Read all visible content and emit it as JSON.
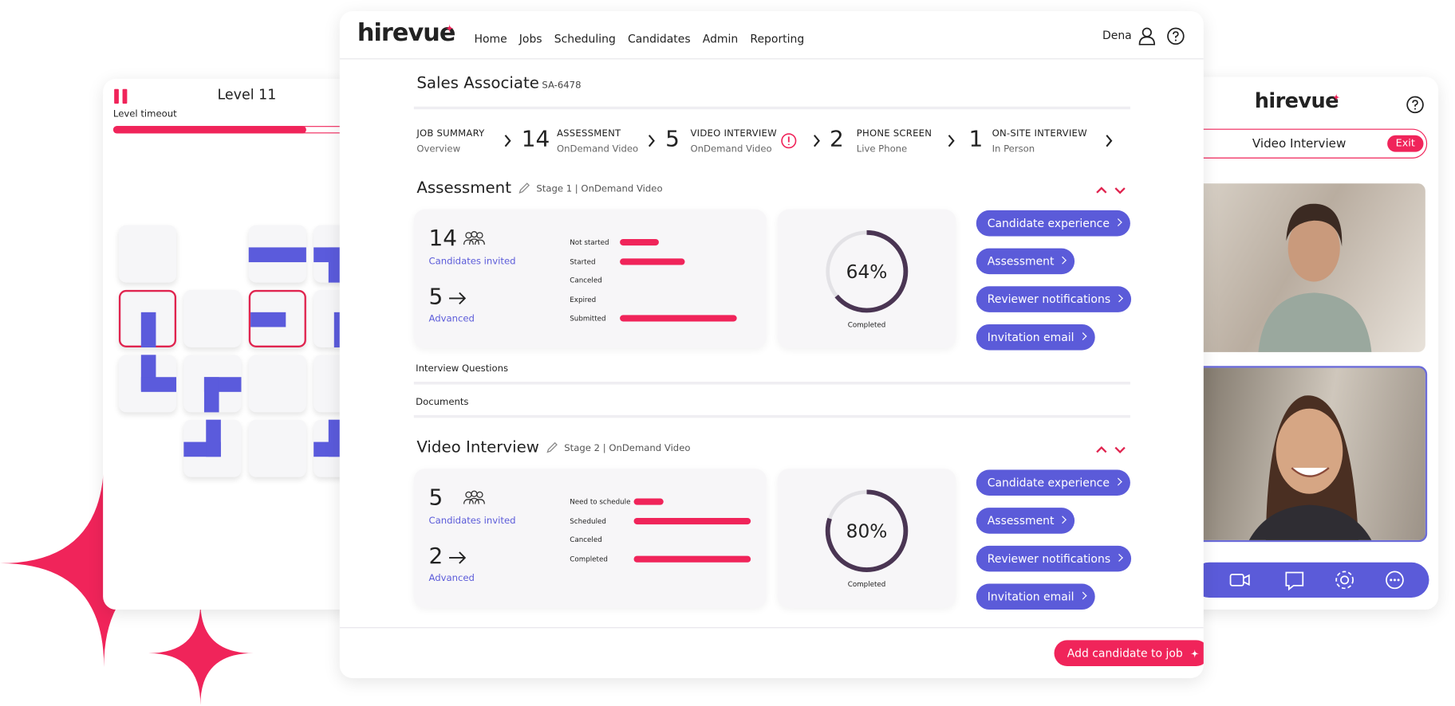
{
  "game": {
    "level": "Level 11",
    "timeout_label": "Level timeout"
  },
  "nav": {
    "logo": "hirevue",
    "links": [
      "Home",
      "Jobs",
      "Scheduling",
      "Candidates",
      "Admin",
      "Reporting"
    ],
    "user": "Dena"
  },
  "job": {
    "title": "Sales Associate",
    "id": "SA-6478"
  },
  "stages": [
    {
      "name": "JOB SUMMARY",
      "sub": "Overview"
    },
    {
      "count": 14,
      "name": "ASSESSMENT",
      "sub": "OnDemand Video"
    },
    {
      "count": 5,
      "name": "VIDEO INTERVIEW",
      "sub": "OnDemand Video"
    },
    {
      "count": 2,
      "name": "PHONE SCREEN",
      "sub": "Live Phone"
    },
    {
      "count": 1,
      "name": "ON-SITE INTERVIEW",
      "sub": "In Person"
    }
  ],
  "sections": [
    {
      "title": "Assessment",
      "meta": "Stage 1 | OnDemand Video",
      "invited": 14,
      "invited_label": "Candidates invited",
      "advanced": 5,
      "advanced_label": "Advanced",
      "statuses": [
        {
          "label": "Not started",
          "value": 3
        },
        {
          "label": "Started",
          "value": 5
        },
        {
          "label": "Canceled",
          "value": 0
        },
        {
          "label": "Expired",
          "value": 0
        },
        {
          "label": "Submitted",
          "value": 9
        }
      ],
      "completed": {
        "value": 64,
        "label": "64%"
      },
      "completed_label": "Completed",
      "buttons": [
        "Candidate experience",
        "Assessment",
        "Reviewer notifications",
        "Invitation email"
      ]
    },
    {
      "title": "Video Interview",
      "meta": "Stage 2 | OnDemand Video",
      "invited": 5,
      "invited_label": "Candidates invited",
      "advanced": 2,
      "advanced_label": "Advanced",
      "statuses": [
        {
          "label": "Need to schedule",
          "value": 1
        },
        {
          "label": "Scheduled",
          "value": 4
        },
        {
          "label": "Canceled",
          "value": 0
        },
        {
          "label": "Completed",
          "value": 4
        }
      ],
      "completed": {
        "value": 80,
        "label": "80%"
      },
      "completed_label": "Completed",
      "buttons": [
        "Candidate experience",
        "Assessment",
        "Reviewer notifications",
        "Invitation email"
      ]
    }
  ],
  "links": [
    "Interview Questions",
    "Documents"
  ],
  "action": "Add candidate to job",
  "video_panel": {
    "logo": "hirevue",
    "title": "Video Interview",
    "exit": "Exit"
  }
}
